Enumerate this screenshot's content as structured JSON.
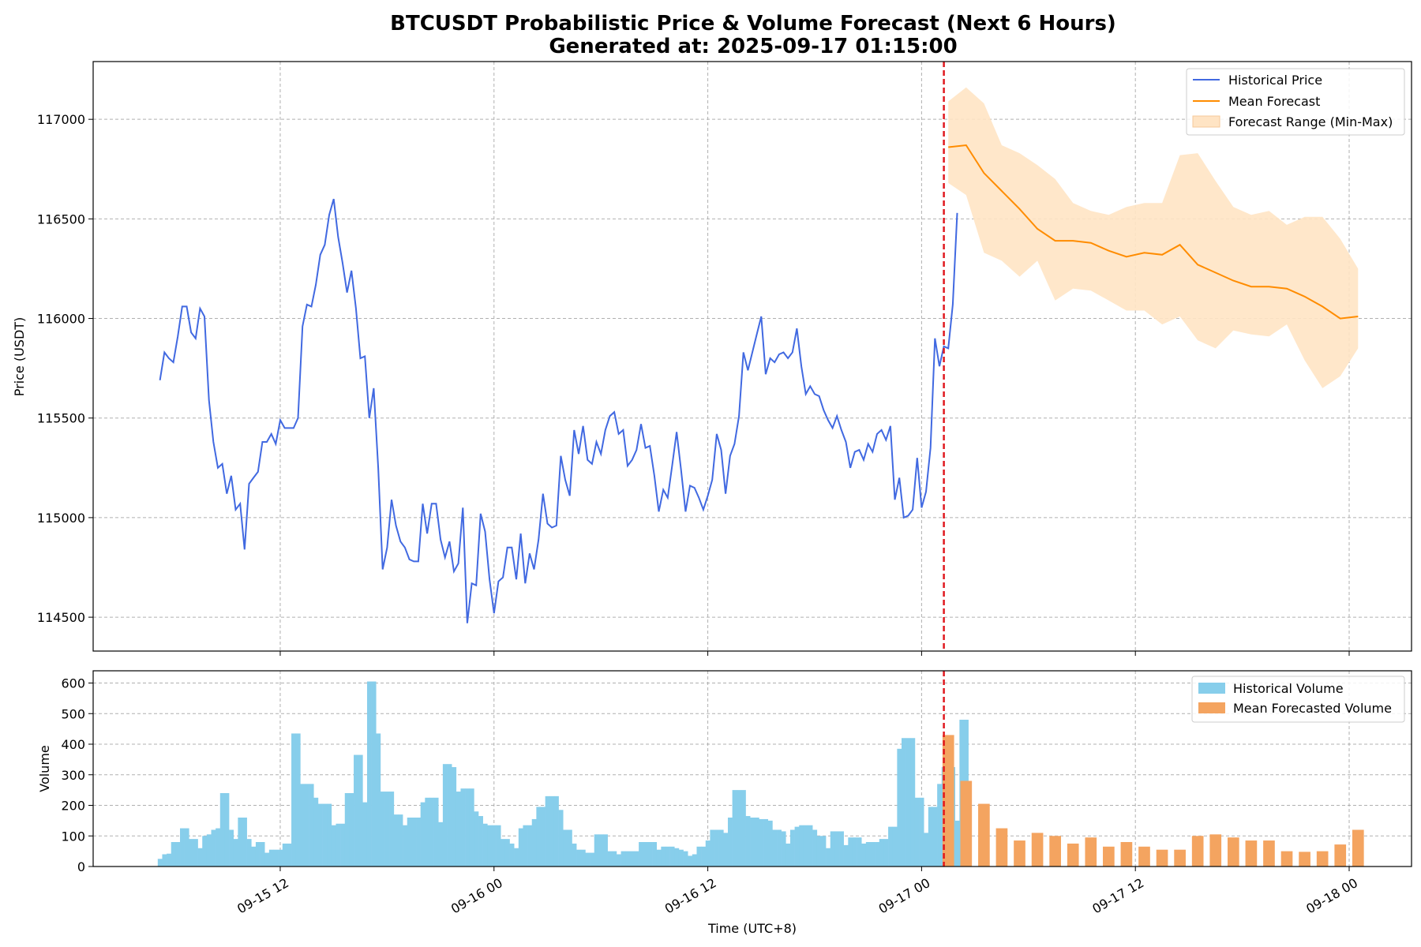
{
  "title_line1": "BTCUSDT Probabilistic Price & Volume Forecast (Next 6 Hours)",
  "title_line2": "Generated at: 2025-09-17 01:15:00",
  "colors": {
    "historical_price": "#4169e1",
    "mean_forecast": "#ff8c00",
    "forecast_range": "#ffe4c4",
    "historical_volume": "#87ceeb",
    "forecast_volume": "#f4a460",
    "divider": "#e0191f"
  },
  "chart_data": [
    {
      "type": "line",
      "ylabel": "Price (USDT)",
      "xlim": [
        "2025-09-15 01:30",
        "2025-09-18 03:30"
      ],
      "ylim": [
        114330,
        117290
      ],
      "yticks": [
        114500,
        115000,
        115500,
        116000,
        116500,
        117000
      ],
      "xticks": [
        "2025-09-15 12:00",
        "2025-09-16 00:00",
        "2025-09-16 12:00",
        "2025-09-17 00:00",
        "2025-09-17 12:00",
        "2025-09-18 00:00"
      ],
      "grid": true,
      "legend_position": "upper right",
      "forecast_start": "2025-09-17 01:15",
      "legend": [
        "Historical Price",
        "Mean Forecast",
        "Forecast Range (Min-Max)"
      ],
      "series": [
        {
          "name": "Historical Price",
          "start": "2025-09-15 05:15",
          "step_minutes": 15,
          "values": [
            115690,
            115830,
            115800,
            115780,
            115910,
            116060,
            116060,
            115930,
            115900,
            116050,
            116010,
            115590,
            115380,
            115250,
            115270,
            115120,
            115210,
            115040,
            115070,
            114840,
            115170,
            115200,
            115230,
            115380,
            115380,
            115420,
            115370,
            115490,
            115450,
            115450,
            115450,
            115500,
            115960,
            116070,
            116060,
            116170,
            116320,
            116370,
            116520,
            116600,
            116410,
            116280,
            116130,
            116240,
            116050,
            115800,
            115810,
            115500,
            115650,
            115250,
            114740,
            114850,
            115090,
            114960,
            114880,
            114850,
            114790,
            114780,
            114780,
            115070,
            114920,
            115070,
            115070,
            114890,
            114800,
            114880,
            114730,
            114770,
            115050,
            114470,
            114670,
            114660,
            115020,
            114930,
            114690,
            114520,
            114680,
            114700,
            114850,
            114850,
            114690,
            114920,
            114670,
            114820,
            114740,
            114890,
            115120,
            114970,
            114950,
            114960,
            115310,
            115190,
            115110,
            115440,
            115320,
            115460,
            115290,
            115270,
            115380,
            115320,
            115440,
            115510,
            115530,
            115420,
            115440,
            115260,
            115290,
            115340,
            115470,
            115350,
            115360,
            115210,
            115030,
            115140,
            115100,
            115260,
            115430,
            115240,
            115030,
            115160,
            115150,
            115100,
            115040,
            115110,
            115190,
            115420,
            115340,
            115120,
            115310,
            115370,
            115510,
            115830,
            115740,
            115830,
            115920,
            116010,
            115720,
            115800,
            115780,
            115820,
            115830,
            115800,
            115830,
            115950,
            115760,
            115620,
            115660,
            115620,
            115610,
            115540,
            115490,
            115450,
            115510,
            115440,
            115380,
            115250,
            115330,
            115340,
            115290,
            115370,
            115330,
            115420,
            115440,
            115390,
            115460,
            115090,
            115200,
            115000,
            115010,
            115040,
            115300,
            115050,
            115130,
            115350,
            115900,
            115760,
            115860,
            115850,
            116070,
            116530
          ]
        },
        {
          "name": "Mean Forecast",
          "start": "2025-09-17 01:30",
          "step_minutes": 60,
          "values": [
            116860,
            116870,
            116730,
            116640,
            116550,
            116450,
            116390,
            116390,
            116380,
            116340,
            116310,
            116330,
            116320,
            116370,
            116270,
            116230,
            116190,
            116160,
            116160,
            116150,
            116110,
            116060,
            116000,
            116010
          ]
        },
        {
          "name": "Forecast Range (Min-Max)",
          "type": "area",
          "start": "2025-09-17 01:30",
          "step_minutes": 60,
          "upper": [
            117090,
            117160,
            117080,
            116870,
            116830,
            116770,
            116700,
            116580,
            116540,
            116520,
            116560,
            116580,
            116580,
            116820,
            116830,
            116690,
            116560,
            116520,
            116540,
            116470,
            116510,
            116510,
            116400,
            116250
          ],
          "lower": [
            116680,
            116620,
            116330,
            116290,
            116210,
            116290,
            116090,
            116150,
            116140,
            116090,
            116040,
            116040,
            115970,
            116010,
            115890,
            115850,
            115940,
            115920,
            115910,
            115970,
            115790,
            115650,
            115710,
            115850
          ]
        }
      ]
    },
    {
      "type": "bar",
      "xlabel": "Time (UTC+8)",
      "ylabel": "Volume",
      "ylim": [
        0,
        640
      ],
      "yticks": [
        0,
        100,
        200,
        300,
        400,
        500,
        600
      ],
      "grid": true,
      "legend_position": "upper right",
      "legend": [
        "Historical Volume",
        "Mean Forecasted Volume"
      ],
      "series": [
        {
          "name": "Historical Volume",
          "start": "2025-09-15 05:15",
          "step_minutes": 15,
          "values": [
            25,
            40,
            42,
            80,
            80,
            125,
            125,
            90,
            90,
            60,
            100,
            105,
            120,
            125,
            240,
            240,
            120,
            90,
            160,
            160,
            90,
            65,
            80,
            80,
            45,
            55,
            55,
            55,
            75,
            75,
            435,
            435,
            270,
            270,
            270,
            225,
            205,
            205,
            205,
            135,
            140,
            140,
            240,
            240,
            365,
            365,
            210,
            605,
            605,
            435,
            245,
            245,
            245,
            170,
            170,
            135,
            160,
            160,
            160,
            210,
            225,
            225,
            225,
            145,
            335,
            335,
            325,
            245,
            255,
            255,
            255,
            180,
            165,
            140,
            135,
            135,
            135,
            90,
            90,
            75,
            60,
            125,
            135,
            135,
            155,
            195,
            195,
            230,
            230,
            230,
            185,
            120,
            120,
            75,
            55,
            55,
            45,
            45,
            105,
            105,
            105,
            50,
            50,
            40,
            50,
            50,
            50,
            50,
            80,
            80,
            80,
            80,
            55,
            65,
            65,
            65,
            60,
            55,
            50,
            35,
            40,
            65,
            65,
            85,
            120,
            120,
            120,
            110,
            160,
            250,
            250,
            250,
            165,
            160,
            160,
            155,
            155,
            150,
            120,
            120,
            115,
            75,
            120,
            130,
            135,
            135,
            135,
            120,
            100,
            100,
            60,
            115,
            115,
            115,
            70,
            95,
            95,
            95,
            75,
            80,
            80,
            80,
            90,
            90,
            130,
            130,
            385,
            420,
            420,
            420,
            225,
            225,
            110,
            195,
            195,
            270,
            325,
            325,
            325,
            150,
            480,
            480
          ]
        },
        {
          "name": "Mean Forecasted Volume",
          "start": "2025-09-17 01:30",
          "step_minutes": 60,
          "values": [
            430,
            280,
            205,
            125,
            85,
            110,
            100,
            75,
            95,
            65,
            80,
            65,
            55,
            55,
            100,
            105,
            95,
            85,
            85,
            50,
            48,
            50,
            72,
            120
          ]
        }
      ]
    }
  ]
}
